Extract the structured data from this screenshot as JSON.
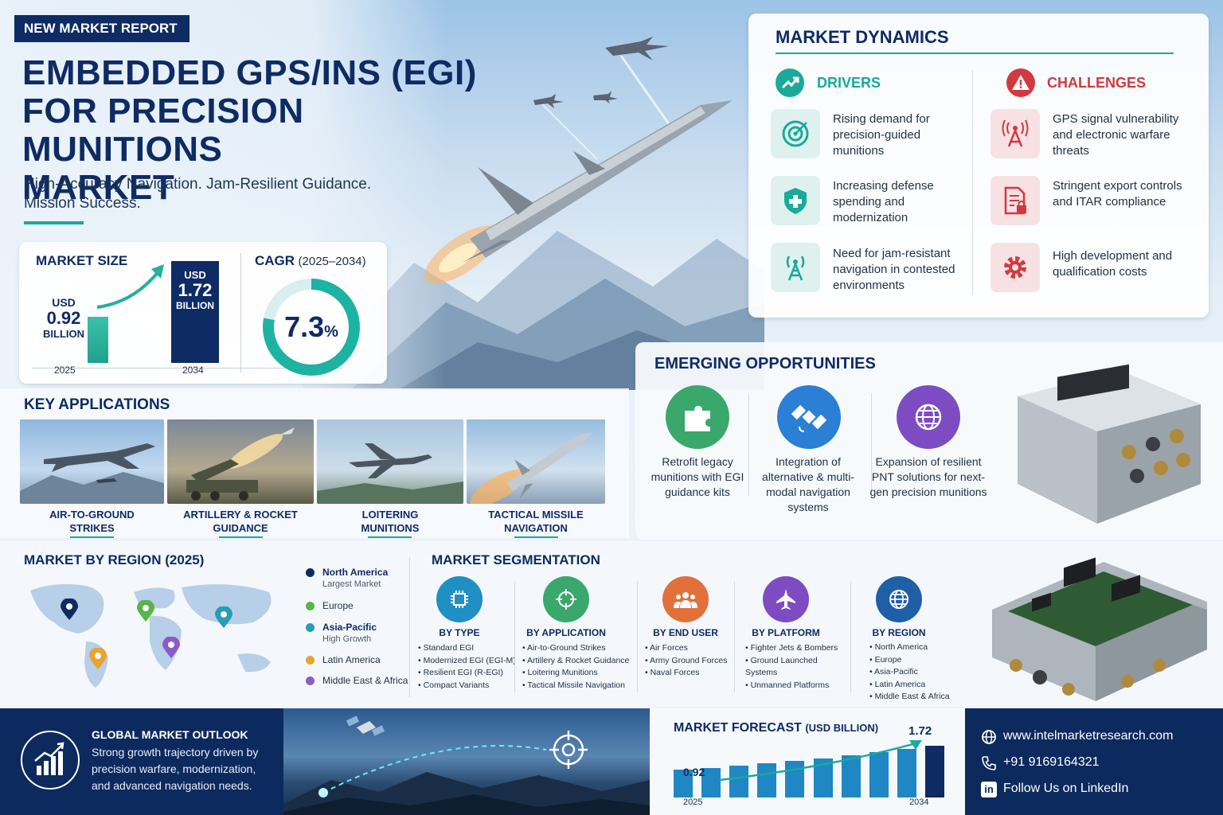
{
  "header": {
    "badge": "NEW MARKET REPORT",
    "title_line1": "EMBEDDED GPS/INS (EGI)",
    "title_line2": "FOR PRECISION MUNITIONS",
    "title_line3": "MARKET",
    "subtitle_line1": "High-Accuracy Navigation. Jam-Resilient Guidance.",
    "subtitle_line2": "Mission Success."
  },
  "market_size": {
    "title": "MARKET SIZE",
    "start": {
      "currency": "USD",
      "value": "0.92",
      "unit": "BILLION",
      "year": "2025"
    },
    "end": {
      "currency": "USD",
      "value": "1.72",
      "unit": "BILLION",
      "year": "2034"
    }
  },
  "cagr": {
    "title": "CAGR",
    "period": "(2025–2034)",
    "value": "7.3",
    "percent": "%",
    "ring_fraction": 0.78
  },
  "dynamics": {
    "title": "MARKET DYNAMICS",
    "drivers_title": "DRIVERS",
    "challenges_title": "CHALLENGES",
    "drivers": [
      {
        "icon": "target-icon",
        "text": "Rising demand for precision-guided munitions"
      },
      {
        "icon": "shield-icon",
        "text": "Increasing defense spending and modernization"
      },
      {
        "icon": "antenna-icon",
        "text": "Need for jam-resistant navigation in contested environments"
      }
    ],
    "challenges": [
      {
        "icon": "signal-tower-icon",
        "text": "GPS signal vulnerability and electronic warfare threats"
      },
      {
        "icon": "document-lock-icon",
        "text": "Stringent export controls and ITAR compliance"
      },
      {
        "icon": "gear-icon",
        "text": "High development and qualification costs"
      }
    ]
  },
  "opportunities": {
    "title": "EMERGING OPPORTUNITIES",
    "items": [
      {
        "icon": "puzzle-icon",
        "color": "#3aa86b",
        "text": "Retrofit legacy munitions with EGI guidance kits"
      },
      {
        "icon": "satellite-icon",
        "color": "#2b7fd4",
        "text": "Integration of alternative & multi-modal navigation systems"
      },
      {
        "icon": "globe-icon",
        "color": "#7d4cc2",
        "text": "Expansion of resilient PNT solutions for next-gen precision munitions"
      }
    ]
  },
  "applications": {
    "title": "KEY APPLICATIONS",
    "items": [
      {
        "line1": "AIR-TO-GROUND",
        "line2": "STRIKES"
      },
      {
        "line1": "ARTILLERY & ROCKET",
        "line2": "GUIDANCE"
      },
      {
        "line1": "LOITERING",
        "line2": "MUNITIONS"
      },
      {
        "line1": "TACTICAL MISSILE",
        "line2": "NAVIGATION"
      }
    ]
  },
  "region": {
    "title": "MARKET BY REGION (2025)",
    "legend": [
      {
        "name": "North America",
        "note": "Largest Market",
        "color": "#0e2b63"
      },
      {
        "name": "Europe",
        "note": "",
        "color": "#59b44a"
      },
      {
        "name": "Asia-Pacific",
        "note": "High Growth",
        "color": "#2a9bb5"
      },
      {
        "name": "Latin America",
        "note": "",
        "color": "#e6a531"
      },
      {
        "name": "Middle East & Africa",
        "note": "",
        "color": "#8c5bc7"
      }
    ]
  },
  "segmentation": {
    "title": "MARKET SEGMENTATION",
    "groups": [
      {
        "icon": "chip-icon",
        "color": "#1f8fc4",
        "title": "BY TYPE",
        "items": [
          "Standard EGI",
          "Modernized EGI (EGI-M)",
          "Resilient EGI (R-EGI)",
          "Compact Variants"
        ]
      },
      {
        "icon": "crosshair-icon",
        "color": "#3aa86b",
        "title": "BY APPLICATION",
        "items": [
          "Air-to-Ground Strikes",
          "Artillery & Rocket Guidance",
          "Loitering Munitions",
          "Tactical Missile Navigation"
        ]
      },
      {
        "icon": "users-icon",
        "color": "#e2703a",
        "title": "BY END USER",
        "items": [
          "Air Forces",
          "Army Ground Forces",
          "Naval Forces"
        ]
      },
      {
        "icon": "jet-icon",
        "color": "#7d4cc2",
        "title": "BY PLATFORM",
        "items": [
          "Fighter Jets & Bombers",
          "Ground Launched Systems",
          "Unmanned Platforms"
        ]
      },
      {
        "icon": "globe-icon",
        "color": "#1f5fa8",
        "title": "BY REGION",
        "items": [
          "North America",
          "Europe",
          "Asia-Pacific",
          "Latin America",
          "Middle East & Africa"
        ]
      }
    ]
  },
  "outlook": {
    "title": "GLOBAL MARKET OUTLOOK",
    "text": "Strong growth trajectory driven by precision warfare, modernization, and advanced navigation needs."
  },
  "forecast": {
    "title": "MARKET FORECAST",
    "unit": "(USD BILLION)",
    "start_label": "0.92",
    "end_label": "1.72",
    "start_year": "2025",
    "end_year": "2034",
    "chart_data": {
      "type": "bar",
      "values": [
        0.92,
        0.99,
        1.06,
        1.14,
        1.22,
        1.31,
        1.41,
        1.51,
        1.62,
        1.72
      ],
      "highlight_last": true
    }
  },
  "contact": {
    "website": "www.intelmarketresearch.com",
    "phone": "+91 9169164321",
    "social": "Follow Us on LinkedIn"
  }
}
